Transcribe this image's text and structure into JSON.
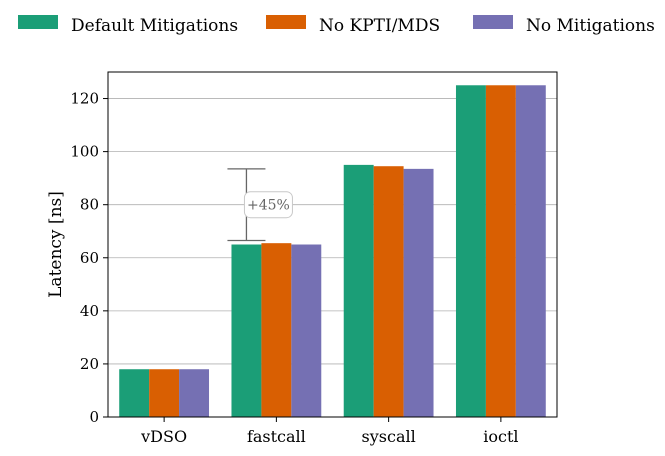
{
  "chart_data": {
    "type": "bar",
    "categories": [
      "vDSO",
      "fastcall",
      "syscall",
      "ioctl"
    ],
    "series": [
      {
        "name": "Default Mitigations",
        "color": "#1b9e77",
        "values": [
          18,
          65,
          95,
          125
        ]
      },
      {
        "name": "No KPTI/MDS",
        "color": "#d95f02",
        "values": [
          18,
          65.5,
          94.5,
          125
        ]
      },
      {
        "name": "No Mitigations",
        "color": "#7570b3",
        "values": [
          18,
          65,
          93.5,
          125
        ]
      }
    ],
    "ylabel": "Latency [ns]",
    "xlabel": "",
    "ylim": [
      0,
      130
    ],
    "yticks": [
      0,
      20,
      40,
      60,
      80,
      100,
      120
    ],
    "grid": "horizontal",
    "legend": "top, horizontal",
    "annotation": {
      "text": "+45%",
      "category": "fastcall",
      "range": [
        66.5,
        93.5
      ],
      "color": "#666666"
    }
  }
}
